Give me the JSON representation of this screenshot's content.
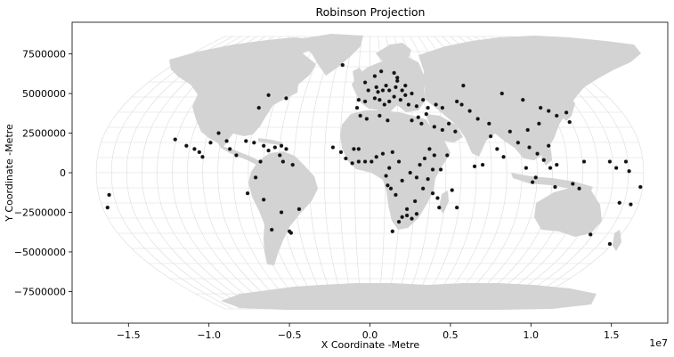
{
  "chart_data": {
    "type": "scatter",
    "title": "Robinson Projection",
    "xlabel": "X Coordinate -Metre",
    "ylabel": "Y Coordinate -Metre",
    "x_offset_label": "1e7",
    "xlim": [
      -18500000.0,
      18500000.0
    ],
    "ylim": [
      -9500000.0,
      9500000.0
    ],
    "xticks": [
      {
        "value": -15000000.0,
        "label": "−1.5"
      },
      {
        "value": -10000000.0,
        "label": "−1.0"
      },
      {
        "value": -5000000.0,
        "label": "−0.5"
      },
      {
        "value": 0,
        "label": "0.0"
      },
      {
        "value": 5000000.0,
        "label": "0.5"
      },
      {
        "value": 10000000.0,
        "label": "1.0"
      },
      {
        "value": 15000000.0,
        "label": "1.5"
      }
    ],
    "yticks": [
      {
        "value": 7500000,
        "label": "7500000"
      },
      {
        "value": 5000000,
        "label": "5000000"
      },
      {
        "value": 2500000,
        "label": "2500000"
      },
      {
        "value": 0,
        "label": "0"
      },
      {
        "value": -2500000,
        "label": "−2500000"
      },
      {
        "value": -5000000,
        "label": "−5000000"
      },
      {
        "value": -7500000,
        "label": "−7500000"
      }
    ],
    "grid": true,
    "basemap": "world land, light grey fill, graticule",
    "colors": {
      "land": "#d3d3d3",
      "points": "#111111",
      "graticule": "#dcdcdc"
    },
    "series": [
      {
        "points": [
          {
            "x": -16200000,
            "y": -1400000
          },
          {
            "x": -16300000,
            "y": -2200000
          },
          {
            "x": -12100000,
            "y": 2100000
          },
          {
            "x": -11400000,
            "y": 1700000
          },
          {
            "x": -10900000,
            "y": 1500000
          },
          {
            "x": -10600000,
            "y": 1300000
          },
          {
            "x": -10400000,
            "y": 1000000
          },
          {
            "x": -9900000,
            "y": 1900000
          },
          {
            "x": -9400000,
            "y": 2500000
          },
          {
            "x": -8900000,
            "y": 2000000
          },
          {
            "x": -8700000,
            "y": 1500000
          },
          {
            "x": -8300000,
            "y": 1100000
          },
          {
            "x": -7700000,
            "y": 2000000
          },
          {
            "x": -7200000,
            "y": 1900000
          },
          {
            "x": -6600000,
            "y": 1700000
          },
          {
            "x": -6300000,
            "y": 1400000
          },
          {
            "x": -5900000,
            "y": 1600000
          },
          {
            "x": -5500000,
            "y": 1700000
          },
          {
            "x": -5200000,
            "y": 1500000
          },
          {
            "x": -5600000,
            "y": 1100000
          },
          {
            "x": -6800000,
            "y": 700000
          },
          {
            "x": -5400000,
            "y": 700000
          },
          {
            "x": -4800000,
            "y": 500000
          },
          {
            "x": -7100000,
            "y": -300000
          },
          {
            "x": -7600000,
            "y": -1300000
          },
          {
            "x": -6600000,
            "y": -1700000
          },
          {
            "x": -5500000,
            "y": -2500000
          },
          {
            "x": -6100000,
            "y": -3600000
          },
          {
            "x": -5000000,
            "y": -3700000
          },
          {
            "x": -4900000,
            "y": -3800000
          },
          {
            "x": -4400000,
            "y": -2300000
          },
          {
            "x": -6900000,
            "y": 4100000
          },
          {
            "x": -6300000,
            "y": 4900000
          },
          {
            "x": -5200000,
            "y": 4700000
          },
          {
            "x": -1700000,
            "y": 6800000
          },
          {
            "x": -300000,
            "y": 5700000
          },
          {
            "x": 300000,
            "y": 6100000
          },
          {
            "x": 700000,
            "y": 6400000
          },
          {
            "x": 1500000,
            "y": 6300000
          },
          {
            "x": 1700000,
            "y": 5800000
          },
          {
            "x": 1700000,
            "y": 6000000
          },
          {
            "x": 1000000,
            "y": 5500000
          },
          {
            "x": 400000,
            "y": 5400000
          },
          {
            "x": -100000,
            "y": 5200000
          },
          {
            "x": 500000,
            "y": 5100000
          },
          {
            "x": 800000,
            "y": 5200000
          },
          {
            "x": 1200000,
            "y": 5200000
          },
          {
            "x": 1600000,
            "y": 5400000
          },
          {
            "x": 2000000,
            "y": 5200000
          },
          {
            "x": 2200000,
            "y": 5500000
          },
          {
            "x": 2600000,
            "y": 5000000
          },
          {
            "x": 2200000,
            "y": 4900000
          },
          {
            "x": 1900000,
            "y": 4600000
          },
          {
            "x": 1500000,
            "y": 4800000
          },
          {
            "x": 1200000,
            "y": 4500000
          },
          {
            "x": 900000,
            "y": 4300000
          },
          {
            "x": 600000,
            "y": 4600000
          },
          {
            "x": 300000,
            "y": 4700000
          },
          {
            "x": -300000,
            "y": 4500000
          },
          {
            "x": -700000,
            "y": 4600000
          },
          {
            "x": -800000,
            "y": 4100000
          },
          {
            "x": 2400000,
            "y": 4300000
          },
          {
            "x": 2900000,
            "y": 4200000
          },
          {
            "x": 3300000,
            "y": 4600000
          },
          {
            "x": 3600000,
            "y": 4100000
          },
          {
            "x": 4100000,
            "y": 4300000
          },
          {
            "x": 4500000,
            "y": 4100000
          },
          {
            "x": 3500000,
            "y": 3700000
          },
          {
            "x": 3000000,
            "y": 3500000
          },
          {
            "x": 2600000,
            "y": 3300000
          },
          {
            "x": 3200000,
            "y": 3100000
          },
          {
            "x": 4000000,
            "y": 2900000
          },
          {
            "x": 4500000,
            "y": 2700000
          },
          {
            "x": 4900000,
            "y": 3100000
          },
          {
            "x": 5300000,
            "y": 2600000
          },
          {
            "x": 5700000,
            "y": 4300000
          },
          {
            "x": 5400000,
            "y": 4500000
          },
          {
            "x": 6200000,
            "y": 3900000
          },
          {
            "x": 6700000,
            "y": 3400000
          },
          {
            "x": 7400000,
            "y": 3100000
          },
          {
            "x": 7500000,
            "y": 2300000
          },
          {
            "x": 7900000,
            "y": 1500000
          },
          {
            "x": 8700000,
            "y": 2600000
          },
          {
            "x": 8200000,
            "y": 5000000
          },
          {
            "x": 5800000,
            "y": 5500000
          },
          {
            "x": 1100000,
            "y": 3300000
          },
          {
            "x": 600000,
            "y": 3600000
          },
          {
            "x": -200000,
            "y": 3400000
          },
          {
            "x": -600000,
            "y": 3600000
          },
          {
            "x": -2300000,
            "y": 1600000
          },
          {
            "x": -1800000,
            "y": 1300000
          },
          {
            "x": -1500000,
            "y": 900000
          },
          {
            "x": -1100000,
            "y": 600000
          },
          {
            "x": -700000,
            "y": 700000
          },
          {
            "x": -300000,
            "y": 700000
          },
          {
            "x": 100000,
            "y": 700000
          },
          {
            "x": 400000,
            "y": 1000000
          },
          {
            "x": 800000,
            "y": 1200000
          },
          {
            "x": 1400000,
            "y": 1300000
          },
          {
            "x": -700000,
            "y": 1500000
          },
          {
            "x": -1000000,
            "y": 1500000
          },
          {
            "x": 1800000,
            "y": 700000
          },
          {
            "x": 1200000,
            "y": 300000
          },
          {
            "x": 1000000,
            "y": -200000
          },
          {
            "x": 1100000,
            "y": -800000
          },
          {
            "x": 1300000,
            "y": -1000000
          },
          {
            "x": 1600000,
            "y": -1400000
          },
          {
            "x": 2000000,
            "y": -500000
          },
          {
            "x": 2500000,
            "y": 0
          },
          {
            "x": 2900000,
            "y": -300000
          },
          {
            "x": 3100000,
            "y": 500000
          },
          {
            "x": 3400000,
            "y": 900000
          },
          {
            "x": 3700000,
            "y": 1500000
          },
          {
            "x": 4000000,
            "y": 1100000
          },
          {
            "x": 3900000,
            "y": 200000
          },
          {
            "x": 3600000,
            "y": -400000
          },
          {
            "x": 3300000,
            "y": -1000000
          },
          {
            "x": 3900000,
            "y": -1300000
          },
          {
            "x": 4200000,
            "y": -1600000
          },
          {
            "x": 2800000,
            "y": -1800000
          },
          {
            "x": 2300000,
            "y": -2300000
          },
          {
            "x": 2000000,
            "y": -2800000
          },
          {
            "x": 2300000,
            "y": -2700000
          },
          {
            "x": 2600000,
            "y": -2900000
          },
          {
            "x": 2900000,
            "y": -2600000
          },
          {
            "x": 1800000,
            "y": -3100000
          },
          {
            "x": 1400000,
            "y": -3700000
          },
          {
            "x": 4300000,
            "y": -2200000
          },
          {
            "x": 5100000,
            "y": -1100000
          },
          {
            "x": 5400000,
            "y": -2200000
          },
          {
            "x": 4400000,
            "y": 200000
          },
          {
            "x": 4800000,
            "y": 1100000
          },
          {
            "x": 9500000,
            "y": 4600000
          },
          {
            "x": 10600000,
            "y": 4100000
          },
          {
            "x": 11100000,
            "y": 3900000
          },
          {
            "x": 11600000,
            "y": 3600000
          },
          {
            "x": 12200000,
            "y": 3800000
          },
          {
            "x": 12400000,
            "y": 3200000
          },
          {
            "x": 10500000,
            "y": 3100000
          },
          {
            "x": 9800000,
            "y": 2700000
          },
          {
            "x": 9200000,
            "y": 1900000
          },
          {
            "x": 9900000,
            "y": 1600000
          },
          {
            "x": 10400000,
            "y": 1200000
          },
          {
            "x": 11100000,
            "y": 1700000
          },
          {
            "x": 10800000,
            "y": 800000
          },
          {
            "x": 11600000,
            "y": 500000
          },
          {
            "x": 11200000,
            "y": 300000
          },
          {
            "x": 10300000,
            "y": -300000
          },
          {
            "x": 10100000,
            "y": -600000
          },
          {
            "x": 11500000,
            "y": -900000
          },
          {
            "x": 12600000,
            "y": -700000
          },
          {
            "x": 13300000,
            "y": 700000
          },
          {
            "x": 13000000,
            "y": -1000000
          },
          {
            "x": 13700000,
            "y": -3900000
          },
          {
            "x": 14900000,
            "y": -4500000
          },
          {
            "x": 15500000,
            "y": -1900000
          },
          {
            "x": 16200000,
            "y": -2000000
          },
          {
            "x": 16800000,
            "y": -900000
          },
          {
            "x": 15900000,
            "y": 700000
          },
          {
            "x": 15300000,
            "y": 300000
          },
          {
            "x": 14900000,
            "y": 700000
          },
          {
            "x": 16100000,
            "y": 100000
          },
          {
            "x": 9700000,
            "y": 300000
          },
          {
            "x": 8300000,
            "y": 1000000
          },
          {
            "x": 7000000,
            "y": 500000
          },
          {
            "x": 6500000,
            "y": 400000
          }
        ]
      }
    ]
  }
}
